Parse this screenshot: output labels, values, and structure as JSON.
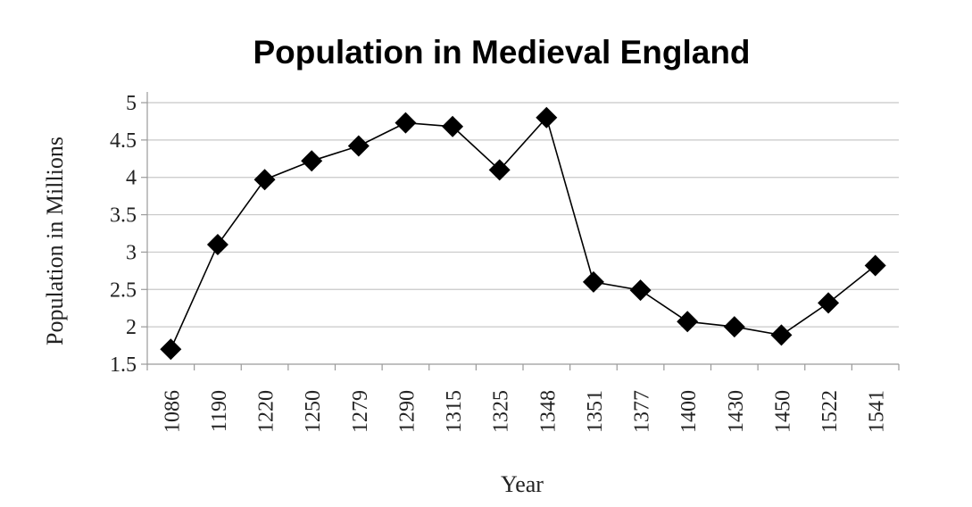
{
  "chart_data": {
    "type": "line",
    "title": "Population in Medieval England",
    "xlabel": "Year",
    "ylabel": "Population in Millions",
    "categories": [
      "1086",
      "1190",
      "1220",
      "1250",
      "1279",
      "1290",
      "1315",
      "1325",
      "1348",
      "1351",
      "1377",
      "1400",
      "1430",
      "1450",
      "1522",
      "1541"
    ],
    "series": [
      {
        "values": [
          1.7,
          3.1,
          3.97,
          4.22,
          4.42,
          4.73,
          4.68,
          4.1,
          4.8,
          2.6,
          2.49,
          2.07,
          2.0,
          1.89,
          2.32,
          2.82
        ]
      }
    ],
    "ylim": [
      1.5,
      5
    ],
    "yticks": [
      1.5,
      2,
      2.5,
      3,
      3.5,
      4,
      4.5,
      5
    ],
    "ytick_labels": [
      "1.5",
      "2",
      "2.5",
      "3",
      "3.5",
      "4",
      "4.5",
      "5"
    ],
    "grid": true,
    "marker": "diamond",
    "line_color": "#000000",
    "grid_color": "#c8c8c8"
  }
}
